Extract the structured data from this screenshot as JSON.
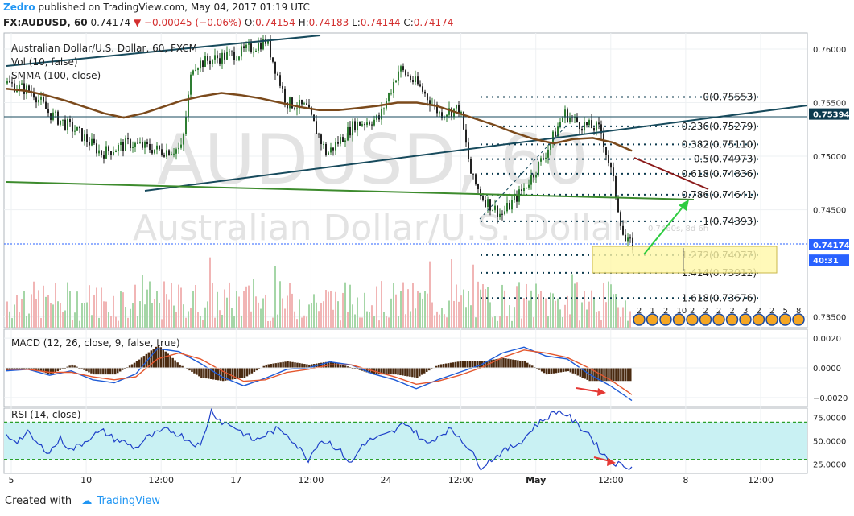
{
  "header": {
    "author": "Zedro",
    "published": "published on TradingView.com, May 04, 2017 01:19 UTC",
    "symbol": "FX:AUDUSD, 60",
    "last": "0.74174",
    "change": "−0.00045 (−0.06%)",
    "o_label": "O:",
    "o_value": "0.74154",
    "h_label": "H:",
    "h_value": "0.74183",
    "l_label": "L:",
    "l_value": "0.74144",
    "c_label": "C:",
    "c_value": "0.74174"
  },
  "footer": {
    "created_with": "Created with",
    "brand": "TradingView"
  },
  "colors": {
    "up": "#2e7d32",
    "down": "#222222",
    "sma": "#7b4a1c",
    "fib": "#0d3b4f",
    "macd": "#1e5bd6",
    "signal": "#e4572e",
    "rsi": "#1e40c8",
    "rsiband": "#c9f1f3",
    "arrow_red": "#e53935",
    "arrow_green": "#2ecc40"
  },
  "chart_data": [
    {
      "type": "line",
      "panel": "price",
      "title": "Australian Dollar/U.S. Dollar, 60, FXCM",
      "indicators": [
        "Vol (10, false)",
        "SMMA (100, close)"
      ],
      "watermark_symbol": "AUDUSD, 60",
      "watermark_name": "Australian Dollar/U.S. Dollar",
      "watermark_partial": "0.7460s, 8d 6h",
      "yticks": [
        "0.76000",
        "0.75500",
        "0.75000",
        "0.74500",
        "0.73500"
      ],
      "ylim": [
        0.734,
        0.7615
      ],
      "price_tags": [
        {
          "value": "0.75394",
          "price": 0.75394,
          "style": "dark"
        },
        {
          "value": "0.74174",
          "price": 0.74174,
          "style": "blue"
        },
        {
          "value": "40:31",
          "price": 0.7403,
          "style": "blue"
        }
      ],
      "fib_levels": [
        {
          "label": "0(0.75553)",
          "price": 0.75553
        },
        {
          "label": "0.236(0.75279)",
          "price": 0.75279
        },
        {
          "label": "0.382(0.75110)",
          "price": 0.7511
        },
        {
          "label": "0.5(0.74973)",
          "price": 0.74973
        },
        {
          "label": "0.618(0.74836)",
          "price": 0.74836
        },
        {
          "label": "0.786(0.74641)",
          "price": 0.74641
        },
        {
          "label": "1(0.74393)",
          "price": 0.74393
        },
        {
          "label": "1.272(0.74077)",
          "price": 0.74077
        },
        {
          "label": "1.414(0.73912)",
          "price": 0.73912
        },
        {
          "label": "1.618(0.73676)",
          "price": 0.73676
        }
      ],
      "series": [
        {
          "name": "SMMA (100, close)",
          "values": [
            0.7563,
            0.7561,
            0.7557,
            0.7552,
            0.7546,
            0.754,
            0.7536,
            0.754,
            0.7546,
            0.7552,
            0.7556,
            0.7559,
            0.7557,
            0.7554,
            0.755,
            0.7546,
            0.7543,
            0.7543,
            0.7545,
            0.7547,
            0.755,
            0.755,
            0.7547,
            0.7541,
            0.7535,
            0.7529,
            0.7522,
            0.7516,
            0.7512,
            0.7516,
            0.7517,
            0.7513,
            0.7505
          ]
        }
      ],
      "x_ticks": [
        "5",
        "10",
        "12:00",
        "17",
        "12:00",
        "24",
        "12:00",
        "May",
        "12:00",
        "8",
        "12:00"
      ],
      "events": [
        "2",
        "1",
        "2",
        "10",
        "2",
        "2",
        "2",
        "2",
        "3",
        "2",
        "2",
        "5",
        "8"
      ]
    },
    {
      "type": "line",
      "panel": "macd",
      "title": "MACD (12, 26, close, 9, false, true)",
      "yticks": [
        "0.0020",
        "0.0000",
        "−0.0020"
      ],
      "ylim": [
        -0.0026,
        0.0026
      ],
      "series": [
        {
          "name": "MACD",
          "values": [
            -0.0002,
            -0.0001,
            -0.0005,
            -0.0002,
            -0.0008,
            -0.001,
            -0.0004,
            0.0013,
            0.0011,
            0.0003,
            -0.0006,
            -0.0012,
            -0.0007,
            -0.0001,
            0.0,
            0.0004,
            0.0002,
            -0.0004,
            -0.0008,
            -0.0014,
            -0.0008,
            -0.0003,
            0.0002,
            0.001,
            0.0014,
            0.0008,
            0.0006,
            -0.0004,
            -0.0012,
            -0.0022
          ]
        },
        {
          "name": "Signal",
          "values": [
            -0.0001,
            -0.0001,
            -0.0003,
            -0.0003,
            -0.0006,
            -0.0008,
            -0.0006,
            0.0006,
            0.001,
            0.0006,
            -0.0002,
            -0.0009,
            -0.0008,
            -0.0003,
            -0.0001,
            0.0002,
            0.0002,
            -0.0002,
            -0.0006,
            -0.0011,
            -0.0009,
            -0.0005,
            0.0,
            0.0007,
            0.0012,
            0.001,
            0.0007,
            0.0,
            -0.0008,
            -0.0018
          ]
        }
      ]
    },
    {
      "type": "line",
      "panel": "rsi",
      "title": "RSI (14, close)",
      "yticks": [
        "75.0000",
        "50.0000",
        "25.0000"
      ],
      "ylim": [
        15,
        85
      ],
      "band": [
        30,
        70
      ],
      "series": [
        {
          "name": "RSI",
          "values": [
            55,
            50,
            58,
            45,
            38,
            52,
            40,
            47,
            56,
            60,
            52,
            48,
            42,
            53,
            58,
            62,
            57,
            50,
            44,
            82,
            70,
            66,
            58,
            50,
            56,
            62,
            58,
            44,
            30,
            50,
            48,
            38,
            25,
            46,
            52,
            55,
            60,
            70,
            58,
            46,
            55,
            62,
            55,
            40,
            22,
            30,
            38,
            44,
            52,
            66,
            74,
            82,
            78,
            66,
            58,
            40,
            28,
            24,
            22
          ]
        }
      ]
    }
  ]
}
